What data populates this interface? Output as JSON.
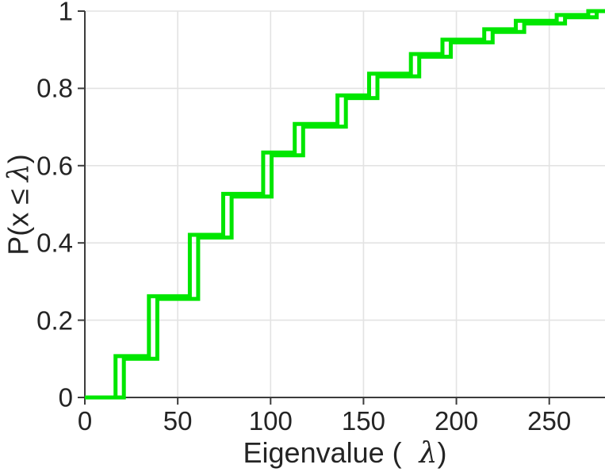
{
  "chart_data": {
    "type": "line",
    "subtype": "ecdf-step",
    "title": "",
    "xlabel": "Eigenvalue ( λ)",
    "ylabel": "P(x ≤ λ)",
    "xlabel_parts": {
      "pre": "Eigenvalue (",
      "lambda": "λ",
      "post": ")"
    },
    "ylabel_parts": {
      "pre": "P(x ",
      "leq": "≤",
      "lambda": "λ",
      "post": ")"
    },
    "xlim": [
      0,
      280
    ],
    "ylim": [
      0,
      1
    ],
    "xticks": [
      0,
      50,
      100,
      150,
      200,
      250
    ],
    "xtick_labels": [
      "0",
      "50",
      "100",
      "150",
      "200",
      "250"
    ],
    "yticks": [
      0,
      0.2,
      0.4,
      0.6,
      0.8,
      1
    ],
    "ytick_labels": [
      "0",
      "0.2",
      "0.4",
      "0.6",
      "0.8",
      "1"
    ],
    "grid": true,
    "legend": "none",
    "colors": {
      "line": "#00e600",
      "grid": "#e3e3e3",
      "axis": "#3c3c3c",
      "text": "#242424"
    },
    "series": [
      {
        "name": "ecdf-leading",
        "steps": [
          [
            16.5,
            0.107
          ],
          [
            34.5,
            0.262
          ],
          [
            56.5,
            0.421
          ],
          [
            74.5,
            0.527
          ],
          [
            96,
            0.634
          ],
          [
            113,
            0.708
          ],
          [
            136,
            0.782
          ],
          [
            153,
            0.838
          ],
          [
            175.5,
            0.889
          ],
          [
            192.5,
            0.926
          ],
          [
            215,
            0.953
          ],
          [
            232,
            0.975
          ],
          [
            254,
            0.99
          ],
          [
            271,
            1.0
          ]
        ]
      },
      {
        "name": "ecdf-trailing",
        "steps": [
          [
            21,
            0.1
          ],
          [
            39,
            0.255
          ],
          [
            61,
            0.414
          ],
          [
            79,
            0.52
          ],
          [
            100.5,
            0.627
          ],
          [
            117.5,
            0.701
          ],
          [
            140.5,
            0.775
          ],
          [
            157.5,
            0.831
          ],
          [
            180,
            0.882
          ],
          [
            197,
            0.919
          ],
          [
            219.5,
            0.946
          ],
          [
            236.5,
            0.968
          ],
          [
            258.5,
            0.984
          ],
          [
            275.5,
            1.0
          ]
        ]
      }
    ]
  }
}
